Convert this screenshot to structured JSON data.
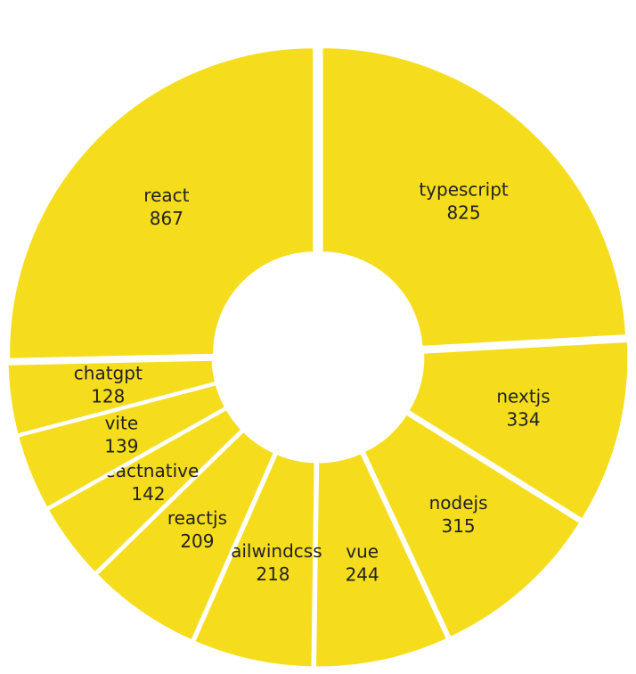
{
  "chart_data": {
    "type": "pie",
    "categories": [
      "typescript",
      "nextjs",
      "nodejs",
      "vue",
      "tailwindcss",
      "reactjs",
      "reactnative",
      "vite",
      "chatgpt",
      "react"
    ],
    "values": [
      825,
      334,
      315,
      244,
      218,
      209,
      142,
      139,
      128,
      867
    ],
    "color": "#f5dd1e"
  }
}
